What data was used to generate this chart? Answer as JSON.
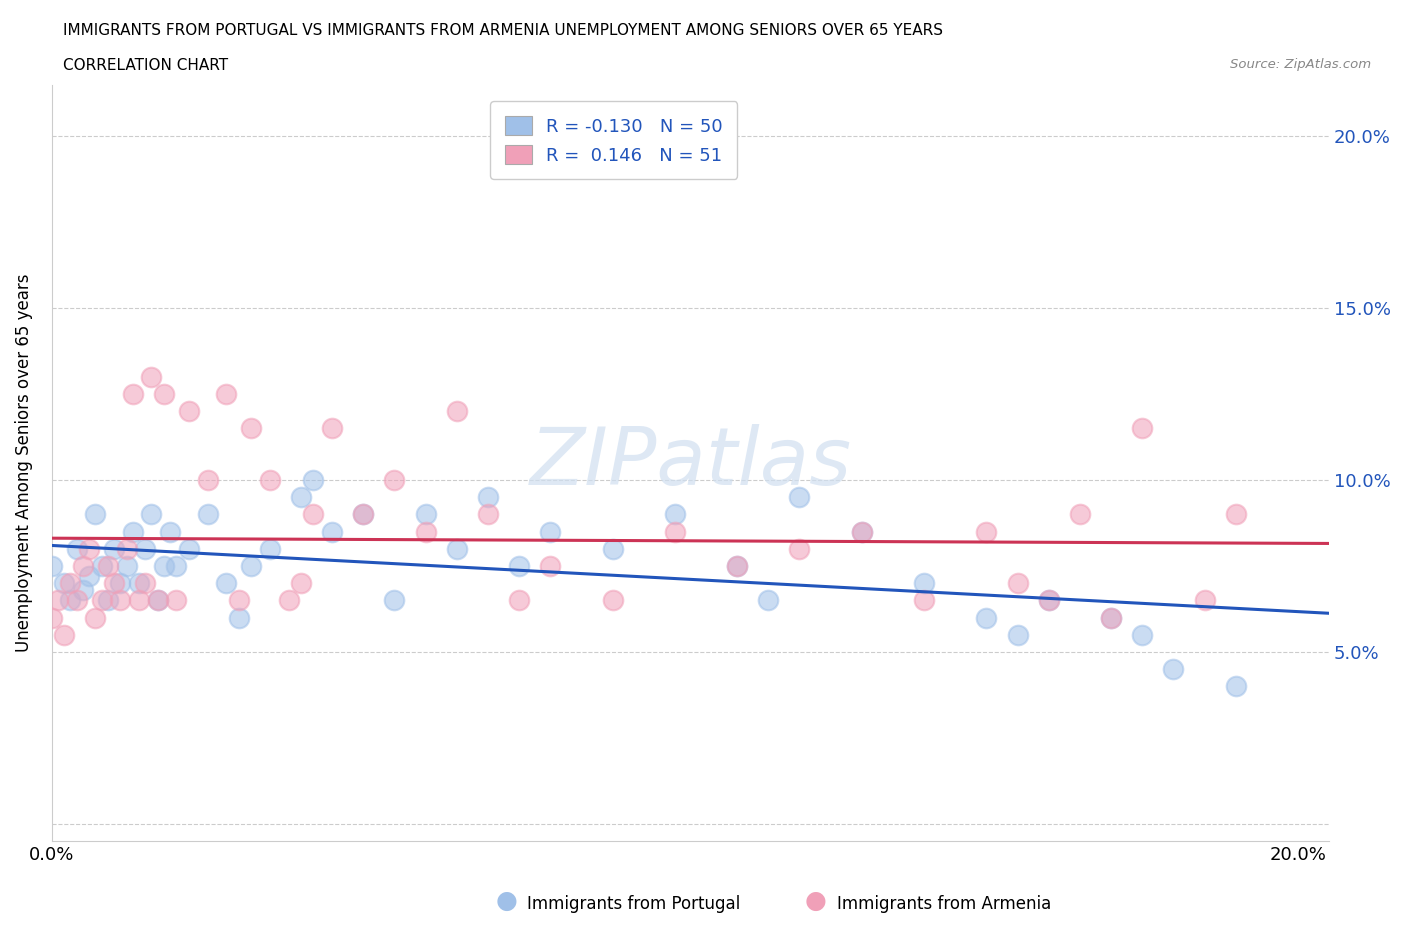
{
  "title_line1": "IMMIGRANTS FROM PORTUGAL VS IMMIGRANTS FROM ARMENIA UNEMPLOYMENT AMONG SENIORS OVER 65 YEARS",
  "title_line2": "CORRELATION CHART",
  "source": "Source: ZipAtlas.com",
  "ylabel": "Unemployment Among Seniors over 65 years",
  "watermark": "ZIPatlas",
  "xlim": [
    0.0,
    0.205
  ],
  "ylim": [
    -0.005,
    0.215
  ],
  "ytick_vals": [
    0.0,
    0.05,
    0.1,
    0.15,
    0.2
  ],
  "ytick_labels_right": [
    "",
    "5.0%",
    "10.0%",
    "15.0%",
    "20.0%"
  ],
  "xtick_vals": [
    0.0,
    0.05,
    0.1,
    0.15,
    0.2
  ],
  "xtick_labels": [
    "0.0%",
    "",
    "",
    "",
    "20.0%"
  ],
  "legend_title_blue": "Immigrants from Portugal",
  "legend_title_pink": "Immigrants from Armenia",
  "portugal_color": "#a0c0e8",
  "armenia_color": "#f0a0b8",
  "portugal_line_color": "#2255bb",
  "armenia_line_color": "#cc3355",
  "portugal_R": -0.13,
  "portugal_N": 50,
  "armenia_R": 0.146,
  "armenia_N": 51,
  "portugal_scatter_x": [
    0.0,
    0.002,
    0.003,
    0.004,
    0.005,
    0.006,
    0.007,
    0.008,
    0.009,
    0.01,
    0.011,
    0.012,
    0.013,
    0.014,
    0.015,
    0.016,
    0.017,
    0.018,
    0.019,
    0.02,
    0.022,
    0.025,
    0.028,
    0.03,
    0.032,
    0.035,
    0.04,
    0.042,
    0.045,
    0.05,
    0.055,
    0.06,
    0.065,
    0.07,
    0.075,
    0.08,
    0.09,
    0.1,
    0.11,
    0.115,
    0.12,
    0.13,
    0.14,
    0.15,
    0.155,
    0.16,
    0.17,
    0.175,
    0.18,
    0.19
  ],
  "portugal_scatter_y": [
    0.075,
    0.07,
    0.065,
    0.08,
    0.068,
    0.072,
    0.09,
    0.075,
    0.065,
    0.08,
    0.07,
    0.075,
    0.085,
    0.07,
    0.08,
    0.09,
    0.065,
    0.075,
    0.085,
    0.075,
    0.08,
    0.09,
    0.07,
    0.06,
    0.075,
    0.08,
    0.095,
    0.1,
    0.085,
    0.09,
    0.065,
    0.09,
    0.08,
    0.095,
    0.075,
    0.085,
    0.08,
    0.09,
    0.075,
    0.065,
    0.095,
    0.085,
    0.07,
    0.06,
    0.055,
    0.065,
    0.06,
    0.055,
    0.045,
    0.04
  ],
  "armenia_scatter_x": [
    0.0,
    0.001,
    0.002,
    0.003,
    0.004,
    0.005,
    0.006,
    0.007,
    0.008,
    0.009,
    0.01,
    0.011,
    0.012,
    0.013,
    0.014,
    0.015,
    0.016,
    0.017,
    0.018,
    0.02,
    0.022,
    0.025,
    0.028,
    0.03,
    0.032,
    0.035,
    0.038,
    0.04,
    0.042,
    0.045,
    0.05,
    0.055,
    0.06,
    0.065,
    0.07,
    0.075,
    0.08,
    0.09,
    0.1,
    0.11,
    0.12,
    0.13,
    0.14,
    0.15,
    0.155,
    0.16,
    0.165,
    0.17,
    0.175,
    0.185,
    0.19
  ],
  "armenia_scatter_y": [
    0.06,
    0.065,
    0.055,
    0.07,
    0.065,
    0.075,
    0.08,
    0.06,
    0.065,
    0.075,
    0.07,
    0.065,
    0.08,
    0.125,
    0.065,
    0.07,
    0.13,
    0.065,
    0.125,
    0.065,
    0.12,
    0.1,
    0.125,
    0.065,
    0.115,
    0.1,
    0.065,
    0.07,
    0.09,
    0.115,
    0.09,
    0.1,
    0.085,
    0.12,
    0.09,
    0.065,
    0.075,
    0.065,
    0.085,
    0.075,
    0.08,
    0.085,
    0.065,
    0.085,
    0.07,
    0.065,
    0.09,
    0.06,
    0.115,
    0.065,
    0.09
  ]
}
